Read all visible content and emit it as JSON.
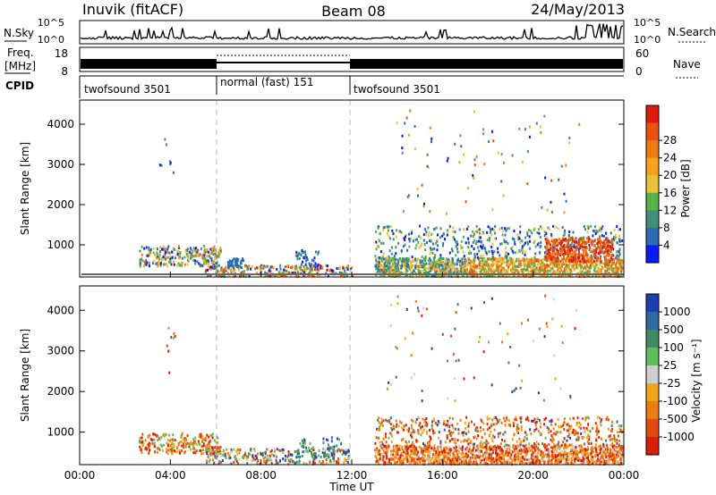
{
  "header": {
    "station": "Inuvik (fitACF)",
    "beam": "Beam 08",
    "date": "24/May/2013"
  },
  "noise_panel": {
    "left_label": "N.Sky",
    "right_label": "N.Search",
    "left_ticks": [
      "10^5",
      "10^0"
    ],
    "right_ticks": [
      "10^5",
      "10^0"
    ]
  },
  "freq_panel": {
    "left_label_1": "Freq.",
    "left_label_2": "[MHz]",
    "right_label": "Nave",
    "left_ticks": [
      "18",
      "8"
    ],
    "right_ticks": [
      "60",
      "0"
    ]
  },
  "cpid": {
    "label": "CPID",
    "segments": [
      "twofsound 3501",
      "normal (fast) 151",
      "twofsound 3501"
    ]
  },
  "time_axis": {
    "title": "Time UT",
    "ticks": [
      "00:00",
      "04:00",
      "08:00",
      "12:00",
      "16:00",
      "20:00",
      "00:00"
    ]
  },
  "chart_data": [
    {
      "type": "heatmap",
      "title": "",
      "xlabel": "Time UT",
      "ylabel": "Slant Range [km]",
      "y_ticks": [
        "1000",
        "2000",
        "3000",
        "4000"
      ],
      "colorbar": {
        "label": "Power [dB]",
        "ticks": [
          "4",
          "8",
          "12",
          "16",
          "20",
          "24",
          "28"
        ],
        "colors": [
          "#0a1bf0",
          "#2b6db0",
          "#3f8f7a",
          "#55b24a",
          "#e9c23c",
          "#f6a21c",
          "#f07b12",
          "#e8520c",
          "#e01b0b"
        ]
      },
      "regions": [
        {
          "t": [
            2.5,
            6.2
          ],
          "range": [
            450,
            1050
          ],
          "note": "mixed power echoes"
        },
        {
          "t": [
            5.5,
            12.0
          ],
          "range": [
            200,
            550
          ],
          "note": "near-range echoes"
        },
        {
          "t": [
            13.0,
            24.0
          ],
          "range": [
            200,
            1500
          ],
          "note": "strong echoes, peak near 21-23 UT"
        }
      ]
    },
    {
      "type": "heatmap",
      "title": "",
      "xlabel": "Time UT",
      "ylabel": "Slant Range [km]",
      "y_ticks": [
        "1000",
        "2000",
        "3000",
        "4000"
      ],
      "colorbar": {
        "label": "Velocity [m s⁻¹]",
        "ticks": [
          "1000",
          "500",
          "100",
          "25",
          "-25",
          "-100",
          "-500",
          "-1000"
        ],
        "colors": [
          "#1f3fb0",
          "#2e6aa0",
          "#3f8a60",
          "#5fbe5a",
          "#cfcfcf",
          "#f2a318",
          "#ee7a12",
          "#e34a0c",
          "#d81d0b"
        ]
      },
      "regions": [
        {
          "t": [
            2.5,
            6.2
          ],
          "range": [
            450,
            1050
          ],
          "note": "mostly negative velocities"
        },
        {
          "t": [
            5.5,
            12.0
          ],
          "range": [
            200,
            700
          ],
          "note": "mixed velocities"
        },
        {
          "t": [
            13.0,
            24.0
          ],
          "range": [
            200,
            1400
          ],
          "note": "predominantly negative velocities"
        }
      ]
    }
  ]
}
